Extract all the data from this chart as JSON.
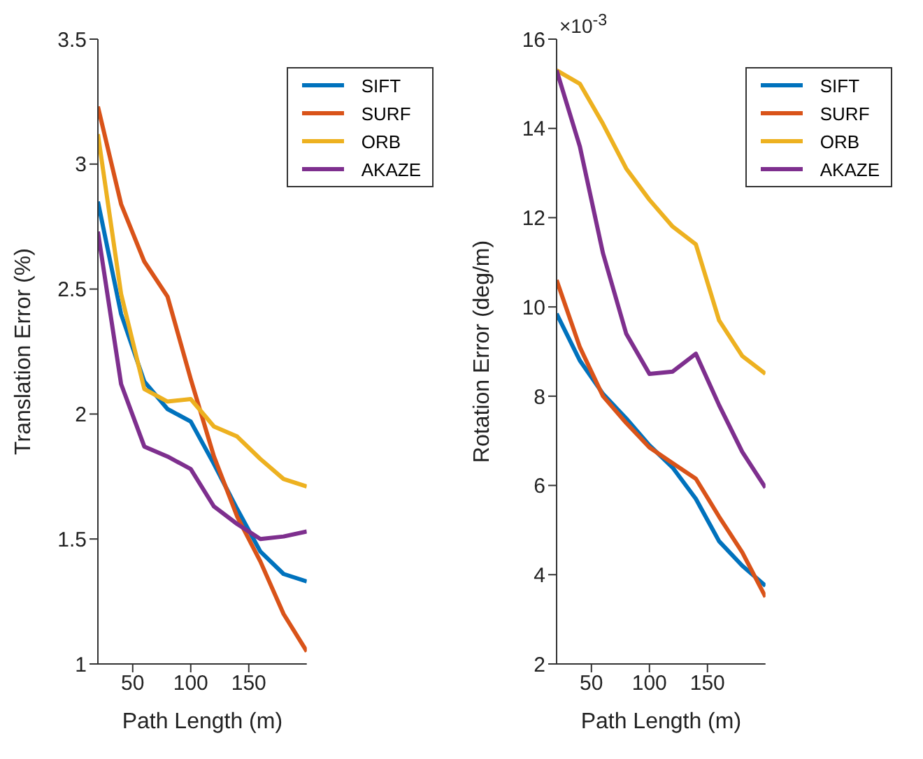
{
  "chart_data": [
    {
      "type": "line",
      "xlabel": "Path Length (m)",
      "ylabel": "Translation Error (%)",
      "x": [
        20,
        40,
        60,
        80,
        100,
        120,
        140,
        160,
        180,
        200
      ],
      "xlim": [
        20,
        200
      ],
      "xticks": [
        50,
        100,
        150
      ],
      "ylim": [
        1,
        3.5
      ],
      "yticks": [
        1,
        1.5,
        2,
        2.5,
        3,
        3.5
      ],
      "legend": "top right",
      "grid": false,
      "series": [
        {
          "name": "SIFT",
          "color": "#0072bd",
          "values": [
            2.85,
            2.4,
            2.13,
            2.02,
            1.97,
            1.8,
            1.62,
            1.45,
            1.36,
            1.33
          ]
        },
        {
          "name": "SURF",
          "color": "#d95319",
          "values": [
            3.23,
            2.84,
            2.61,
            2.47,
            2.14,
            1.83,
            1.59,
            1.41,
            1.2,
            1.05
          ]
        },
        {
          "name": "ORB",
          "color": "#edb120",
          "values": [
            3.12,
            2.48,
            2.1,
            2.05,
            2.06,
            1.95,
            1.91,
            1.82,
            1.74,
            1.71
          ]
        },
        {
          "name": "AKAZE",
          "color": "#7e2f8e",
          "values": [
            2.73,
            2.12,
            1.87,
            1.83,
            1.78,
            1.63,
            1.56,
            1.5,
            1.51,
            1.53
          ]
        }
      ]
    },
    {
      "type": "line",
      "xlabel": "Path Length (m)",
      "ylabel": "Rotation Error (deg/m)",
      "annotations": [
        "×10$^{-3}$"
      ],
      "x": [
        20,
        40,
        60,
        80,
        100,
        120,
        140,
        160,
        180,
        200
      ],
      "xlim": [
        20,
        200
      ],
      "xticks": [
        50,
        100,
        150
      ],
      "ylim": [
        2,
        16
      ],
      "yticks": [
        2,
        4,
        6,
        8,
        10,
        12,
        14,
        16
      ],
      "legend": "top right",
      "grid": false,
      "series": [
        {
          "name": "SIFT",
          "color": "#0072bd",
          "values": [
            9.85,
            8.8,
            8.05,
            7.5,
            6.9,
            6.4,
            5.7,
            4.75,
            4.2,
            3.75
          ]
        },
        {
          "name": "SURF",
          "color": "#d95319",
          "values": [
            10.6,
            9.1,
            8.0,
            7.4,
            6.85,
            6.5,
            6.15,
            5.3,
            4.5,
            3.5
          ]
        },
        {
          "name": "ORB",
          "color": "#edb120",
          "values": [
            15.3,
            15.0,
            14.1,
            13.1,
            12.4,
            11.8,
            11.4,
            9.7,
            8.9,
            8.5
          ]
        },
        {
          "name": "AKAZE",
          "color": "#7e2f8e",
          "values": [
            15.3,
            13.6,
            11.2,
            9.4,
            8.5,
            8.55,
            8.95,
            7.8,
            6.75,
            5.95
          ]
        }
      ]
    }
  ]
}
